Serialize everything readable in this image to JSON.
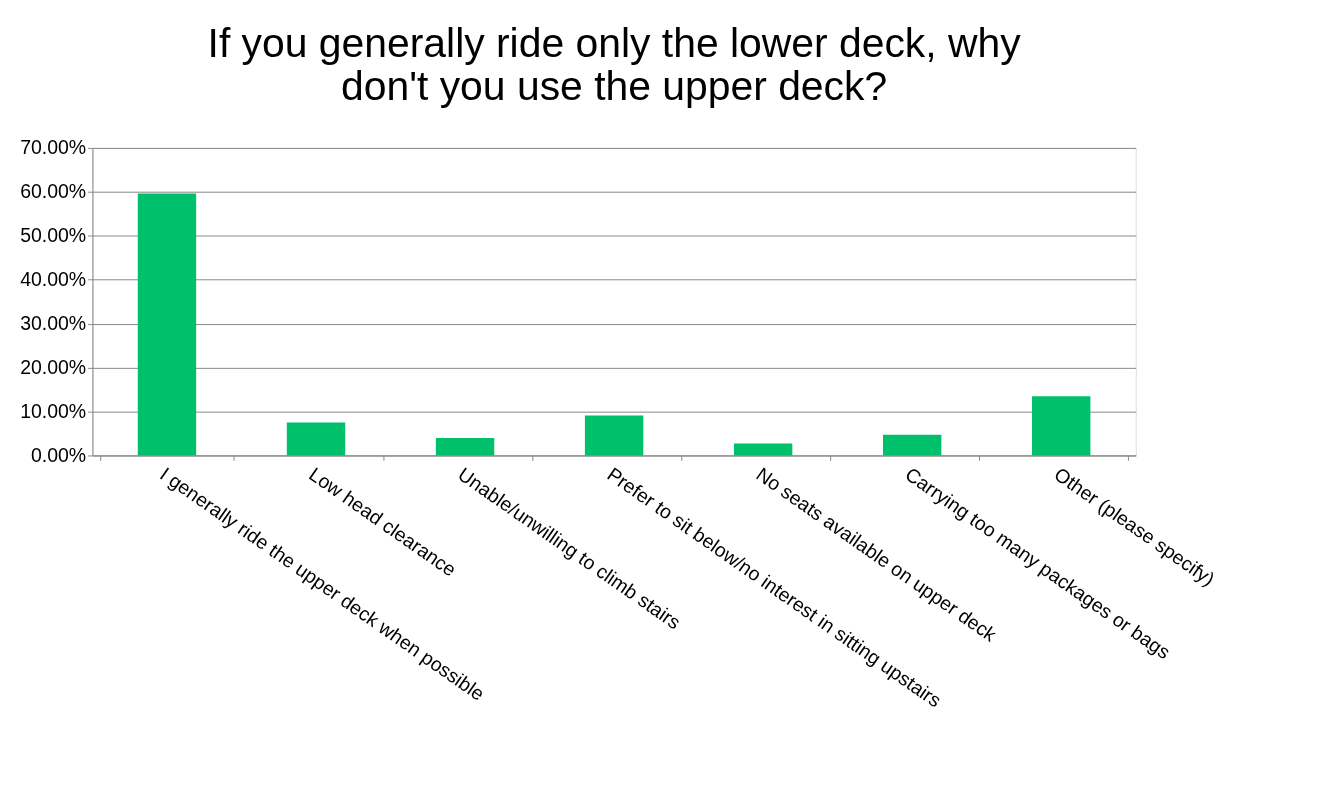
{
  "chart_data": {
    "type": "bar",
    "title": [
      "If you generally ride only the lower deck, why",
      "don't you use the upper deck?"
    ],
    "categories": [
      "I generally ride the upper deck when possible",
      "Low head clearance",
      "Unable/unwilling to climb stairs",
      "Prefer to sit below/no interest in sitting upstairs",
      "No seats available on upper deck",
      "Carrying too many packages or bags",
      "Other (please specify)"
    ],
    "values": [
      59.6,
      7.5,
      4.0,
      9.1,
      2.7,
      4.7,
      13.5
    ],
    "color": "#00c06b",
    "ylim": [
      0,
      70
    ],
    "yticks": [
      {
        "value": 0,
        "label": "0.00%"
      },
      {
        "value": 10,
        "label": "10.00%"
      },
      {
        "value": 20,
        "label": "20.00%"
      },
      {
        "value": 30,
        "label": "30.00%"
      },
      {
        "value": 40,
        "label": "40.00%"
      },
      {
        "value": 50,
        "label": "50.00%"
      },
      {
        "value": 60,
        "label": "60.00%"
      },
      {
        "value": 70,
        "label": "70.00%"
      }
    ],
    "grid": "y"
  }
}
